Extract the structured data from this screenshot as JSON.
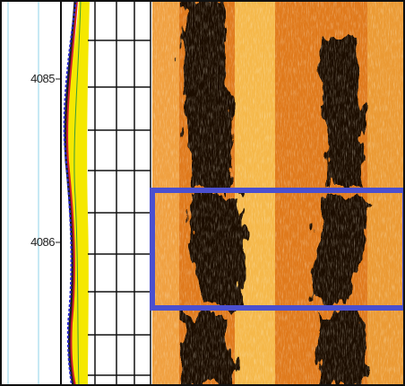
{
  "depth_track": {
    "labels": [
      "4085",
      "4086"
    ]
  }
}
